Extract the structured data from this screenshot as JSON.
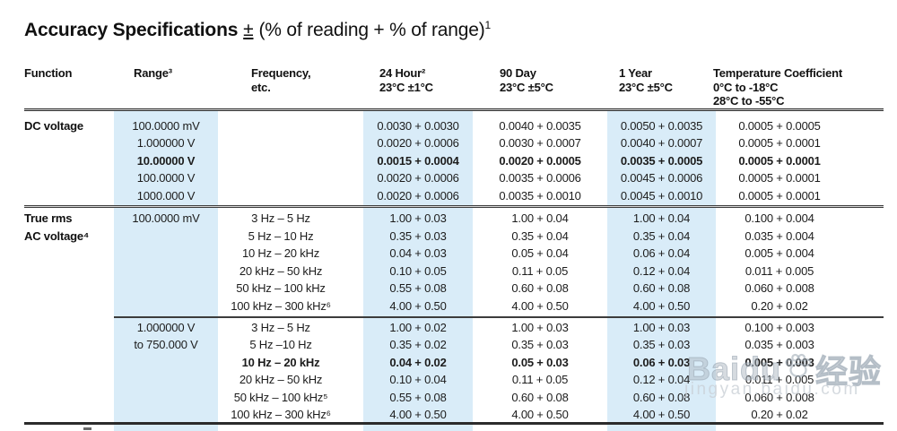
{
  "title": {
    "bold": "Accuracy Specifications",
    "pm": "±",
    "rest": "(% of reading + % of range)",
    "sup": "1"
  },
  "headers": {
    "function": [
      "Function"
    ],
    "range": [
      "Range³"
    ],
    "frequency": [
      "Frequency,",
      "etc."
    ],
    "hour24": [
      "24 Hour²",
      "23°C ±1°C"
    ],
    "day90": [
      "90 Day",
      "23°C ±5°C"
    ],
    "year1": [
      "1 Year",
      "23°C ±5°C"
    ],
    "tempco": [
      "Temperature Coefficient",
      "0°C to -18°C",
      "28°C to -55°C"
    ]
  },
  "sections": [
    {
      "name": "DC voltage",
      "rows": [
        {
          "func": "DC voltage",
          "range": "100.0000 mV",
          "freq": "",
          "h24": "0.0030 + 0.0030",
          "d90": "0.0040 + 0.0035",
          "y1": "0.0050 + 0.0035",
          "tc": "0.0005 + 0.0005",
          "bold": false
        },
        {
          "func": "",
          "range": "1.000000 V",
          "freq": "",
          "h24": "0.0020 + 0.0006",
          "d90": "0.0030 + 0.0007",
          "y1": "0.0040 + 0.0007",
          "tc": "0.0005 + 0.0001",
          "bold": false
        },
        {
          "func": "",
          "range": "10.00000 V",
          "freq": "",
          "h24": "0.0015 + 0.0004",
          "d90": "0.0020 + 0.0005",
          "y1": "0.0035 + 0.0005",
          "tc": "0.0005 + 0.0001",
          "bold": true
        },
        {
          "func": "",
          "range": "100.0000 V",
          "freq": "",
          "h24": "0.0020 + 0.0006",
          "d90": "0.0035 + 0.0006",
          "y1": "0.0045 + 0.0006",
          "tc": "0.0005 + 0.0001",
          "bold": false
        },
        {
          "func": "",
          "range": "1000.000 V",
          "freq": "",
          "h24": "0.0020 + 0.0006",
          "d90": "0.0035 + 0.0010",
          "y1": "0.0045 + 0.0010",
          "tc": "0.0005 + 0.0001",
          "bold": false
        }
      ]
    },
    {
      "name": "True rms AC voltage, 100 mV range",
      "rows": [
        {
          "func": "True rms",
          "range": "100.0000 mV",
          "freq": "3 Hz – 5 Hz",
          "h24": "1.00 + 0.03",
          "d90": "1.00 + 0.04",
          "y1": "1.00 + 0.04",
          "tc": "0.100 + 0.004",
          "bold": false
        },
        {
          "func": "AC voltage⁴",
          "range": "",
          "freq": "5 Hz – 10 Hz",
          "h24": "0.35 + 0.03",
          "d90": "0.35 + 0.04",
          "y1": "0.35 + 0.04",
          "tc": "0.035 + 0.004",
          "bold": false
        },
        {
          "func": "",
          "range": "",
          "freq": "10 Hz – 20 kHz",
          "h24": "0.04 + 0.03",
          "d90": "0.05 + 0.04",
          "y1": "0.06 + 0.04",
          "tc": "0.005 + 0.004",
          "bold": false
        },
        {
          "func": "",
          "range": "",
          "freq": "20 kHz – 50 kHz",
          "h24": "0.10 + 0.05",
          "d90": "0.11 + 0.05",
          "y1": "0.12 + 0.04",
          "tc": "0.011 + 0.005",
          "bold": false
        },
        {
          "func": "",
          "range": "",
          "freq": "50 kHz – 100 kHz",
          "h24": "0.55 + 0.08",
          "d90": "0.60 + 0.08",
          "y1": "0.60 + 0.08",
          "tc": "0.060 + 0.008",
          "bold": false
        },
        {
          "func": "",
          "range": "",
          "freq": "100 kHz – 300 kHz⁶",
          "h24": "4.00 + 0.50",
          "d90": "4.00 + 0.50",
          "y1": "4.00 + 0.50",
          "tc": "0.20 + 0.02",
          "bold": false
        }
      ]
    },
    {
      "name": "True rms AC voltage, 1 V to 750 V ranges",
      "rows": [
        {
          "func": "",
          "range": "1.000000 V",
          "freq": "3 Hz – 5 Hz",
          "h24": "1.00 + 0.02",
          "d90": "1.00 + 0.03",
          "y1": "1.00 + 0.03",
          "tc": "0.100 + 0.003",
          "bold": false
        },
        {
          "func": "",
          "range": "to 750.000 V",
          "freq": "5 Hz –10 Hz",
          "h24": "0.35 + 0.02",
          "d90": "0.35 + 0.03",
          "y1": "0.35 + 0.03",
          "tc": "0.035 + 0.003",
          "bold": false
        },
        {
          "func": "",
          "range": "",
          "freq": "10 Hz – 20 kHz",
          "h24": "0.04 + 0.02",
          "d90": "0.05 + 0.03",
          "y1": "0.06 + 0.03",
          "tc": "0.005 + 0.003",
          "bold": true
        },
        {
          "func": "",
          "range": "",
          "freq": "20 kHz – 50 kHz",
          "h24": "0.10 + 0.04",
          "d90": "0.11 + 0.05",
          "y1": "0.12 + 0.04",
          "tc": "0.011 + 0.005",
          "bold": false
        },
        {
          "func": "",
          "range": "",
          "freq": "50 kHz – 100 kHz⁵",
          "h24": "0.55 + 0.08",
          "d90": "0.60 + 0.08",
          "y1": "0.60 + 0.08",
          "tc": "0.060 + 0.008",
          "bold": false
        },
        {
          "func": "",
          "range": "",
          "freq": "100 kHz – 300 kHz⁶",
          "h24": "4.00 + 0.50",
          "d90": "4.00 + 0.50",
          "y1": "4.00 + 0.50",
          "tc": "0.20 + 0.02",
          "bold": false
        }
      ]
    }
  ],
  "watermark": {
    "logo_left": "Baidu",
    "logo_right": "经验",
    "url": "jingyan.baidu.com"
  },
  "colors": {
    "highlight_band": "#d9ecf8",
    "text": "#1c1c1c",
    "rule": "#2e2e2e",
    "watermark": "#c9d0d6"
  }
}
